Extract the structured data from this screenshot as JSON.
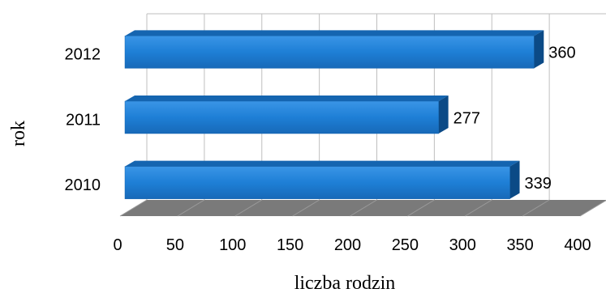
{
  "chart_data": {
    "type": "bar",
    "orientation": "horizontal",
    "style": "3d",
    "title": "",
    "xlabel": "liczba rodzin",
    "ylabel": "rok",
    "categories": [
      "2010",
      "2011",
      "2012"
    ],
    "values": [
      339,
      277,
      360
    ],
    "data_labels": [
      "339",
      "277",
      "360"
    ],
    "xlim": [
      0,
      400
    ],
    "xticks": [
      "0",
      "50",
      "100",
      "150",
      "200",
      "250",
      "300",
      "350",
      "400"
    ],
    "grid": "vertical",
    "legend": "none",
    "colors": {
      "bar_front": "#1E7FD6",
      "bar_top": "#1565B0",
      "bar_side": "#0B4A86",
      "floor": "#7A7A7A",
      "grid": "#BFBFBF"
    }
  }
}
